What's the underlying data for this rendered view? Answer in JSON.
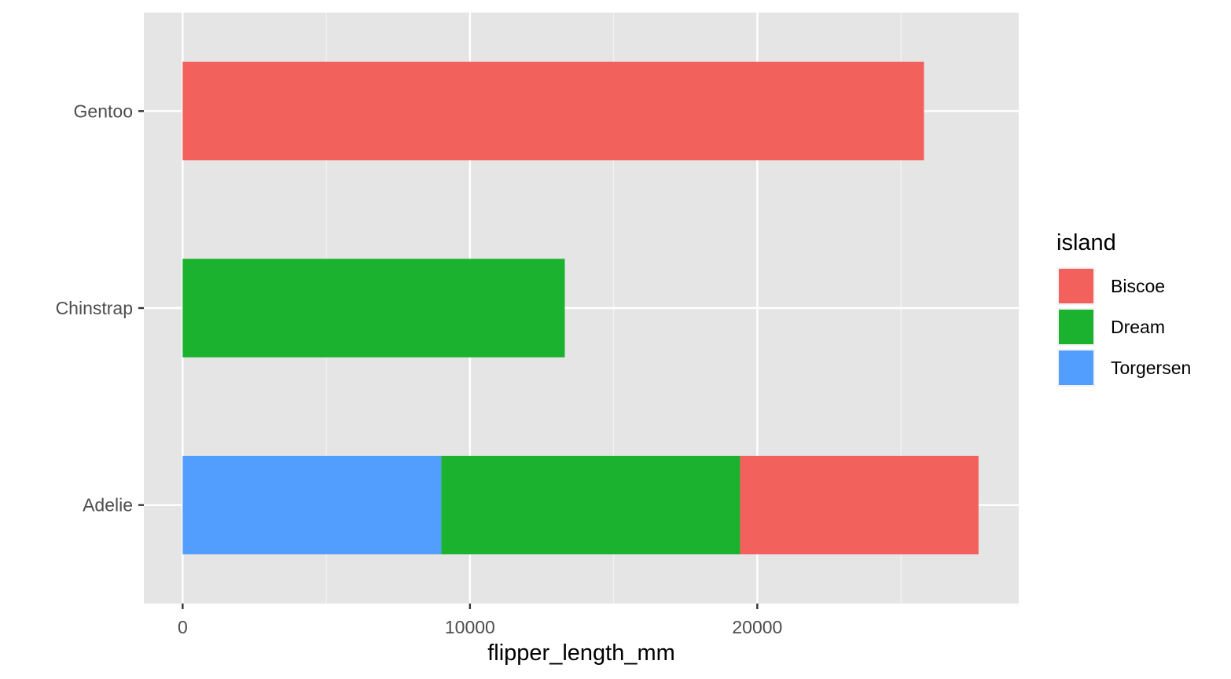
{
  "chart_data": {
    "type": "bar",
    "orientation": "horizontal",
    "stacked": true,
    "categories": [
      "Adelie",
      "Chinstrap",
      "Gentoo"
    ],
    "series": [
      {
        "name": "Torgersen",
        "color": "#529EFF",
        "values": [
          9000,
          0,
          0
        ]
      },
      {
        "name": "Dream",
        "color": "#1AB22E",
        "values": [
          10400,
          13300,
          0
        ]
      },
      {
        "name": "Biscoe",
        "color": "#F3615C",
        "values": [
          8300,
          0,
          25800
        ]
      }
    ],
    "xlabel": "flipper_length_mm",
    "ylabel": "",
    "xlim": [
      -1350,
      29100
    ],
    "xticks": [
      0,
      10000,
      20000
    ],
    "grid": true,
    "legend": {
      "title": "island",
      "position": "right",
      "entries": [
        "Biscoe",
        "Dream",
        "Torgersen"
      ]
    }
  }
}
